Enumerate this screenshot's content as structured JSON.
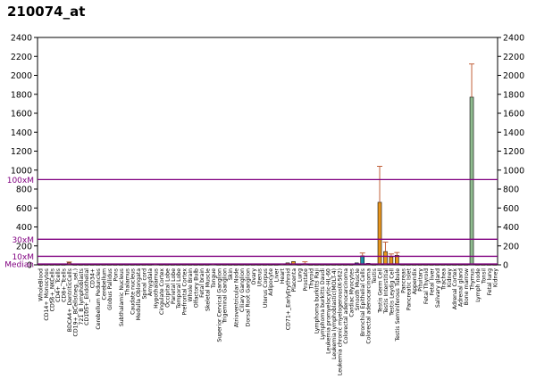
{
  "chart_data": {
    "type": "bar",
    "title": "210074_at",
    "ylim": [
      0,
      2400
    ],
    "yticks": [
      0,
      200,
      400,
      600,
      800,
      1000,
      1200,
      1400,
      1600,
      1800,
      2000,
      2200,
      2400
    ],
    "ytick_labels": [
      "0",
      "200",
      "400",
      "600",
      "800",
      "1000",
      "1200",
      "1400",
      "1600",
      "1800",
      "2000",
      "2200",
      "2400"
    ],
    "reference_lines": [
      {
        "label": "100xM",
        "value": 900,
        "color": "#800080"
      },
      {
        "label": "30xM",
        "value": 270,
        "color": "#800080"
      },
      {
        "label": "10xM",
        "value": 90,
        "color": "#800080"
      },
      {
        "label": "Median",
        "value": 9,
        "color": "#800080"
      }
    ],
    "categories": [
      "WholeBlood",
      "CD14+_Monocytes",
      "CD56+_NKCells",
      "CD4+_Tcells",
      "CD8+_Tcells",
      "BDCA4+_DentriticCells",
      "CD19+_BCells(neg._sel.)",
      "721_B_lymphoblasts",
      "CD105+_Endothelial",
      "CD34+",
      "Cerebellum Peduncles",
      "Cerebellum",
      "Globus Pallidus",
      "Pons",
      "Subthalamic Nucleus",
      "Thalamus",
      "Caudate nucleus",
      "Medulla Oblongata",
      "Spinal cord",
      "Amygdala",
      "Hypothalamus",
      "Cingulate Cortex",
      "Occipital Lobe",
      "Parietal Lobe",
      "Temporal Lobe",
      "Prefrontal Cortex",
      "Whole Brain",
      "Olfactory Bulb",
      "Fetal brain",
      "Skeletal Muscle",
      "Tongue",
      "Superior Cervical Ganglion",
      "Trigeminal Ganglion",
      "Skin",
      "Atrioventricular Node",
      "Ciliary Ganglion",
      "Dorsal Root Ganglion",
      "Ovary",
      "Uterus",
      "Uterus Corpus",
      "Adipocyte",
      "Liver",
      "Heart",
      "CD71+_EarlyErythroid",
      "Placenta",
      "Lung",
      "Prostate",
      "Thyroid",
      "Lymphoma burkitts Raji",
      "Lymphoma burkitts Daudi",
      "Leukemia promyelocytic-HL-60",
      "Leukemia lymphoblastic(MOLT-4)",
      "Leukemia chronic myelogenous(K-562)",
      "Colorectal adenocarcinoma",
      "Cardiac Myocytes",
      "Smooth Muscle",
      "Bronchial Epithelial Cells",
      "Colorectal adenocarcinoma",
      "Testis",
      "Testis Germ Cell",
      "Testis Interstitial",
      "Testis Leydig Cell",
      "Testis Seminiferous Tubule",
      "Pancreas",
      "Pancreatic Islet",
      "Appendix",
      "Pituitary",
      "Fetal Thyroid",
      "Fetal liver",
      "Salivary gland",
      "Trachea",
      "Kidney",
      "Adrenal Cortex",
      "Adrenal gland",
      "Bone marrow",
      "Thymus",
      "Lymph node",
      "Tonsil",
      "Fetal lung",
      "Kidney"
    ],
    "values": [
      4,
      4,
      4,
      4,
      4,
      22,
      4,
      4,
      4,
      4,
      4,
      4,
      4,
      4,
      4,
      4,
      4,
      4,
      4,
      4,
      6,
      4,
      4,
      4,
      4,
      4,
      4,
      4,
      4,
      4,
      8,
      4,
      4,
      4,
      4,
      4,
      4,
      4,
      4,
      4,
      4,
      4,
      10,
      20,
      35,
      4,
      12,
      4,
      4,
      4,
      4,
      4,
      4,
      4,
      4,
      20,
      95,
      15,
      4,
      660,
      140,
      85,
      100,
      4,
      4,
      4,
      4,
      4,
      4,
      4,
      4,
      4,
      4,
      4,
      4,
      1770,
      4,
      4,
      4,
      4
    ],
    "errors": [
      0,
      0,
      0,
      0,
      0,
      8,
      0,
      0,
      0,
      0,
      0,
      0,
      0,
      0,
      0,
      0,
      0,
      0,
      0,
      0,
      0,
      0,
      0,
      0,
      0,
      0,
      0,
      0,
      0,
      0,
      0,
      0,
      0,
      0,
      0,
      0,
      0,
      0,
      0,
      0,
      0,
      0,
      0,
      0,
      0,
      0,
      20,
      0,
      0,
      0,
      0,
      0,
      0,
      0,
      0,
      0,
      30,
      0,
      0,
      380,
      100,
      30,
      30,
      0,
      0,
      0,
      0,
      0,
      0,
      0,
      0,
      0,
      0,
      0,
      0,
      350,
      0,
      0,
      0,
      0
    ],
    "bar_colors": [
      "#f5a623",
      "#f5a623",
      "#f5a623",
      "#f5a623",
      "#f5a623",
      "#f5a623",
      "#f5a623",
      "#f5a623",
      "#f5a623",
      "#f5a623",
      "#f5a623",
      "#f5a623",
      "#f5a623",
      "#f5a623",
      "#f5a623",
      "#f5a623",
      "#f5a623",
      "#f5a623",
      "#f5a623",
      "#f5a623",
      "#f5a623",
      "#f5a623",
      "#f5a623",
      "#f5a623",
      "#f5a623",
      "#f5a623",
      "#f5a623",
      "#f5a623",
      "#f5a623",
      "#f5a623",
      "#f5a623",
      "#f5a623",
      "#f5a623",
      "#f5a623",
      "#f5a623",
      "#f5a623",
      "#f5a623",
      "#f5a623",
      "#f5a623",
      "#f5a623",
      "#f5a623",
      "#f5a623",
      "#f5a623",
      "#f5a623",
      "#f5a623",
      "#f5a623",
      "#f5a623",
      "#f5a623",
      "#f5a623",
      "#f5a623",
      "#f5a623",
      "#f5a623",
      "#f5a623",
      "#f5a623",
      "#f5a623",
      "#1e7bb0",
      "#1e90a8",
      "#f5a623",
      "#f5a623",
      "#e8961e",
      "#e8961e",
      "#e8961e",
      "#e8961e",
      "#f5a623",
      "#f5a623",
      "#f5a623",
      "#f5a623",
      "#f5a623",
      "#f5a623",
      "#f5a623",
      "#f5a623",
      "#f5a623",
      "#f5a623",
      "#f5a623",
      "#f5a623",
      "#8fbc8f",
      "#f5a623",
      "#f5a623",
      "#f5a623",
      "#f5a623"
    ],
    "grid": false,
    "legend": "none"
  }
}
